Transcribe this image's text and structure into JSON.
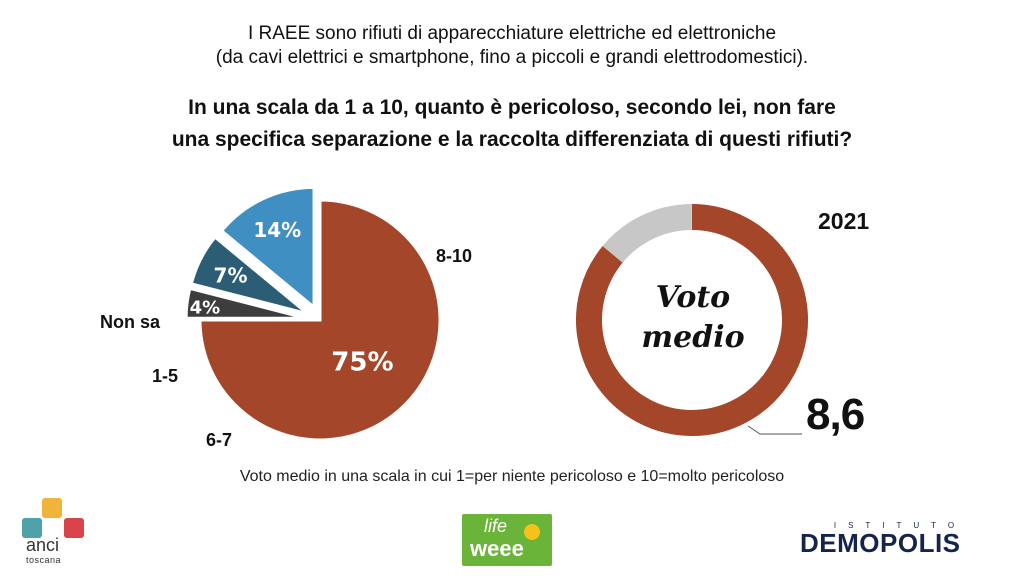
{
  "header": {
    "line1": "I RAEE sono rifiuti di apparecchiature elettriche ed elettroniche",
    "line2": "(da cavi elettrici e smartphone, fino a piccoli e grandi elettrodomestici).",
    "question1": "In una scala da 1 a 10, quanto è pericoloso, secondo lei, non fare",
    "question2": "una specifica separazione e la raccolta differenziata di questi rifiuti?"
  },
  "chart_data": [
    {
      "type": "pie",
      "categories": [
        "8-10",
        "Non sa",
        "1-5",
        "6-7"
      ],
      "values": [
        75,
        4,
        7,
        14
      ],
      "value_labels": [
        "75%",
        "4%",
        "7%",
        "14%"
      ],
      "colors": [
        "#a4462a",
        "#3d3d3d",
        "#2b5d75",
        "#3f8fc3"
      ],
      "exploded": [
        "Non sa",
        "1-5",
        "6-7"
      ]
    },
    {
      "type": "donut",
      "title": "2021",
      "center_label": [
        "Voto",
        "medio"
      ],
      "value": 8.6,
      "value_label": "8,6",
      "max": 10,
      "colors": {
        "filled": "#a4462a",
        "remainder": "#c7c7c7"
      }
    }
  ],
  "footnote": "Voto medio in una scala in cui 1=per niente pericoloso e 10=molto pericoloso",
  "logos": {
    "anci": "anci",
    "anci_sub": "toscana",
    "life_top": "life",
    "life_bottom": "weee",
    "demopolis_top": "ISTITUTO",
    "demopolis": "DEMOPOLIS"
  }
}
